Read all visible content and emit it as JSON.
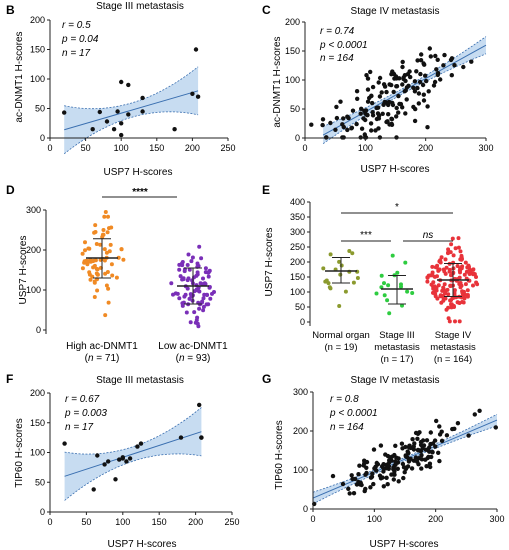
{
  "chart_data": [
    {
      "panel": "B",
      "type": "scatter",
      "title": "Stage III metastasis",
      "xlabel": "USP7 H-scores",
      "ylabel": "ac-DNMT1 H-scores",
      "xlim": [
        0,
        250
      ],
      "ylim": [
        0,
        200
      ],
      "xticks": [
        0,
        50,
        100,
        150,
        200,
        250
      ],
      "yticks": [
        0,
        50,
        100,
        150,
        200
      ],
      "stats": [
        "r = 0.5",
        "p = 0.04",
        "n = 17"
      ],
      "regression": {
        "x": [
          20,
          208
        ],
        "y": [
          14,
          80
        ]
      },
      "points": [
        [
          20,
          43
        ],
        [
          60,
          15
        ],
        [
          70,
          44
        ],
        [
          80,
          28
        ],
        [
          90,
          15
        ],
        [
          95,
          45
        ],
        [
          100,
          95
        ],
        [
          100,
          25
        ],
        [
          100,
          5
        ],
        [
          110,
          90
        ],
        [
          110,
          40
        ],
        [
          130,
          68
        ],
        [
          130,
          45
        ],
        [
          175,
          15
        ],
        [
          200,
          75
        ],
        [
          205,
          150
        ],
        [
          208,
          70
        ]
      ]
    },
    {
      "panel": "C",
      "type": "scatter",
      "title": "Stage IV metastasis",
      "xlabel": "USP7 H-scores",
      "ylabel": "ac-DNMT1 H-scores",
      "xlim": [
        0,
        300
      ],
      "ylim": [
        0,
        200
      ],
      "xticks": [
        0,
        100,
        200,
        300
      ],
      "yticks": [
        0,
        50,
        100,
        150,
        200
      ],
      "stats": [
        "r = 0.74",
        "p < 0.0001",
        "n = 164"
      ],
      "regression": {
        "x": [
          30,
          300
        ],
        "y": [
          5,
          160
        ]
      }
    },
    {
      "panel": "D",
      "type": "scatter",
      "title": "",
      "xlabel": "",
      "ylabel": "USP7 H-scores",
      "ylim": [
        0,
        300
      ],
      "yticks": [
        0,
        100,
        200,
        300
      ],
      "significance": "****",
      "groups": [
        {
          "label": "High ac-DNMT1",
          "n": "71",
          "color": "#f08a24",
          "mean": 180,
          "sd_low": 130,
          "sd_high": 228
        },
        {
          "label": "Low ac-DNMT1",
          "n": "93",
          "color": "#7a2fb8",
          "mean": 110,
          "sd_low": 65,
          "sd_high": 155
        }
      ]
    },
    {
      "panel": "E",
      "type": "scatter",
      "title": "",
      "xlabel": "",
      "ylabel": "USP7 H-scores",
      "ylim": [
        0,
        400
      ],
      "yticks": [
        0,
        50,
        100,
        150,
        200,
        250,
        300,
        350,
        400
      ],
      "significance": [
        {
          "groups": [
            0,
            2
          ],
          "label": "*"
        },
        {
          "groups": [
            0,
            1
          ],
          "label": "***"
        },
        {
          "groups": [
            1,
            2
          ],
          "label": "ns"
        }
      ],
      "groups": [
        {
          "label": [
            "Normal organ",
            "(n = 19)"
          ],
          "color": "#8b9a2e",
          "mean": 170,
          "sd_low": 130,
          "sd_high": 215
        },
        {
          "label": [
            "Stage III",
            "metastasis",
            "(n = 17)"
          ],
          "color": "#2ecc40",
          "mean": 110,
          "sd_low": 60,
          "sd_high": 155
        },
        {
          "label": [
            "Stage IV",
            "metastasis",
            "(n = 164)"
          ],
          "color": "#e8333a",
          "mean": 140,
          "sd_low": 85,
          "sd_high": 195
        }
      ]
    },
    {
      "panel": "F",
      "type": "scatter",
      "title": "Stage III metastasis",
      "xlabel": "USP7 H-scores",
      "ylabel": "TIP60 H-scores",
      "xlim": [
        0,
        250
      ],
      "ylim": [
        0,
        200
      ],
      "xticks": [
        0,
        50,
        100,
        150,
        200,
        250
      ],
      "yticks": [
        0,
        50,
        100,
        150,
        200
      ],
      "stats": [
        "r = 0.67",
        "p = 0.003",
        "n = 17"
      ],
      "regression": {
        "x": [
          20,
          208
        ],
        "y": [
          60,
          135
        ]
      },
      "points": [
        [
          20,
          115
        ],
        [
          60,
          38
        ],
        [
          65,
          95
        ],
        [
          75,
          80
        ],
        [
          80,
          85
        ],
        [
          90,
          55
        ],
        [
          95,
          88
        ],
        [
          100,
          92
        ],
        [
          105,
          85
        ],
        [
          110,
          90
        ],
        [
          120,
          110
        ],
        [
          125,
          115
        ],
        [
          180,
          125
        ],
        [
          205,
          180
        ],
        [
          208,
          125
        ],
        [
          208,
          125
        ],
        [
          100,
          90
        ]
      ]
    },
    {
      "panel": "G",
      "type": "scatter",
      "title": "Stage IV metastasis",
      "xlabel": "USP7 H-scores",
      "ylabel": "TIP60 H-scores",
      "xlim": [
        0,
        300
      ],
      "ylim": [
        0,
        300
      ],
      "xticks": [
        0,
        100,
        200,
        300
      ],
      "yticks": [
        0,
        100,
        200,
        300
      ],
      "stats": [
        "r = 0.8",
        "p < 0.0001",
        "n = 164"
      ],
      "regression": {
        "x": [
          0,
          300
        ],
        "y": [
          28,
          228
        ]
      }
    }
  ]
}
